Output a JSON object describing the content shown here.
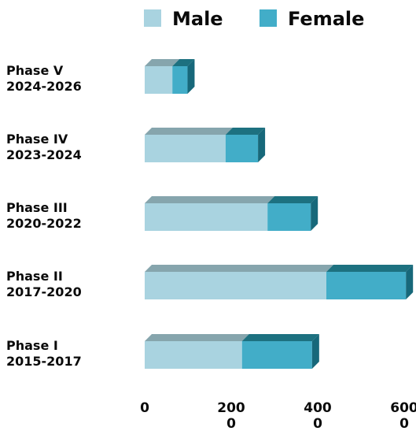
{
  "chart_data": {
    "type": "bar3d_stacked_horizontal",
    "categories": [
      "Phase V\n2024-2026",
      "Phase IV\n2023-2024",
      "Phase III\n2020-2022",
      "Phase II\n2017-2020",
      "Phase I\n2015-2017"
    ],
    "series": [
      {
        "name": "Male",
        "color": "#a9d3e0",
        "values": [
          640,
          1870,
          2840,
          4200,
          2250
        ]
      },
      {
        "name": "Female",
        "color": "#42adc8",
        "values": [
          350,
          750,
          1000,
          1840,
          1620
        ]
      }
    ],
    "xlim": [
      0,
      6000
    ],
    "xticks": [
      0,
      2000,
      4000,
      6000
    ]
  }
}
